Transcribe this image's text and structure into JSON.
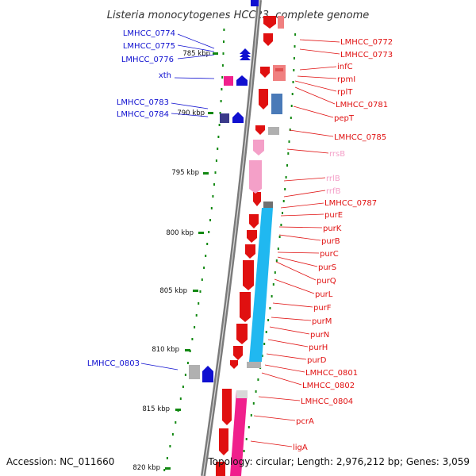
{
  "title": "Listeria monocytogenes HCC23, complete genome",
  "footer": {
    "accession": "Accession: NC_011660",
    "topology": "Topology: circular; Length: 2,976,212 bp; Genes: 3,059"
  },
  "colors": {
    "forward_gene": "#1010d0",
    "reverse_gene": "#e01010",
    "rrna": "#f4a0c8",
    "trna": "#a0a0a0",
    "operon": "#20b8f0",
    "magenta": "#f0208c",
    "scale_tick": "#118811",
    "backbone": "#808080"
  },
  "scale": [
    "785 kbp",
    "790 kbp",
    "795 kbp",
    "800 kbp",
    "805 kbp",
    "810 kbp",
    "815 kbp",
    "820 kbp"
  ],
  "left_labels": [
    "LMHCC_0774",
    "LMHCC_0775",
    "LMHCC_0776",
    "xth",
    "LMHCC_0783",
    "LMHCC_0784",
    "LMHCC_0803"
  ],
  "right_labels": [
    "LMHCC_0772",
    "LMHCC_0773",
    "infC",
    "rpmI",
    "rplT",
    "LMHCC_0781",
    "pepT",
    "LMHCC_0785",
    "rrsB",
    "rrlB",
    "rrfB",
    "LMHCC_0787",
    "purE",
    "purK",
    "purB",
    "purC",
    "purS",
    "purQ",
    "purL",
    "purF",
    "purM",
    "purN",
    "purH",
    "purD",
    "LMHCC_0801",
    "LMHCC_0802",
    "LMHCC_0804",
    "pcrA",
    "ligA"
  ]
}
